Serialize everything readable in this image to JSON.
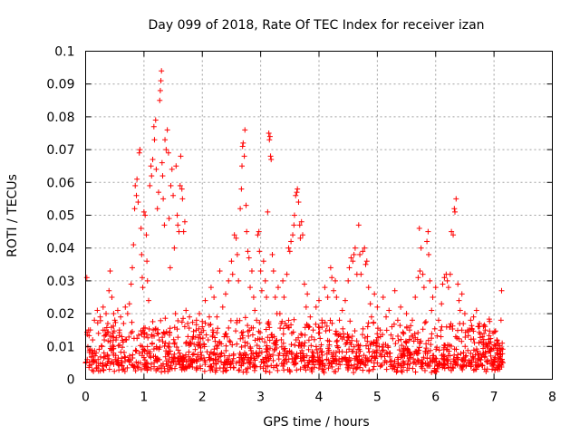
{
  "chart_data": {
    "type": "scatter",
    "title": "Day 099 of 2018, Rate Of TEC Index for receiver izan",
    "xlabel": "GPS time / hours",
    "ylabel": "ROTI / TECUs",
    "xlim": [
      0,
      8
    ],
    "ylim": [
      0,
      0.1
    ],
    "xticks": [
      "0",
      "1",
      "2",
      "3",
      "4",
      "5",
      "6",
      "7",
      "8"
    ],
    "yticks": [
      "0",
      "0.01",
      "0.02",
      "0.03",
      "0.04",
      "0.05",
      "0.06",
      "0.07",
      "0.08",
      "0.09",
      "0.1"
    ],
    "grid": true,
    "marker": "+",
    "color": "#ff0000",
    "series": [
      {
        "name": "ROTI",
        "points": [
          [
            0.0,
            0.005
          ],
          [
            0.02,
            0.031
          ],
          [
            0.05,
            0.015
          ],
          [
            0.08,
            0.009
          ],
          [
            0.1,
            0.007
          ],
          [
            0.12,
            0.012
          ],
          [
            0.15,
            0.018
          ],
          [
            0.18,
            0.008
          ],
          [
            0.2,
            0.021
          ],
          [
            0.22,
            0.014
          ],
          [
            0.25,
            0.019
          ],
          [
            0.28,
            0.01
          ],
          [
            0.3,
            0.022
          ],
          [
            0.32,
            0.012
          ],
          [
            0.35,
            0.02
          ],
          [
            0.38,
            0.017
          ],
          [
            0.4,
            0.027
          ],
          [
            0.42,
            0.033
          ],
          [
            0.45,
            0.025
          ],
          [
            0.48,
            0.02
          ],
          [
            0.5,
            0.018
          ],
          [
            0.52,
            0.012
          ],
          [
            0.55,
            0.021
          ],
          [
            0.58,
            0.015
          ],
          [
            0.6,
            0.019
          ],
          [
            0.62,
            0.013
          ],
          [
            0.65,
            0.017
          ],
          [
            0.68,
            0.022
          ],
          [
            0.7,
            0.012
          ],
          [
            0.72,
            0.02
          ],
          [
            0.75,
            0.023
          ],
          [
            0.78,
            0.029
          ],
          [
            0.8,
            0.034
          ],
          [
            0.82,
            0.041
          ],
          [
            0.84,
            0.052
          ],
          [
            0.85,
            0.059
          ],
          [
            0.87,
            0.056
          ],
          [
            0.88,
            0.061
          ],
          [
            0.9,
            0.054
          ],
          [
            0.92,
            0.069
          ],
          [
            0.93,
            0.07
          ],
          [
            0.95,
            0.046
          ],
          [
            0.96,
            0.038
          ],
          [
            0.97,
            0.031
          ],
          [
            0.98,
            0.028
          ],
          [
            1.0,
            0.051
          ],
          [
            1.02,
            0.05
          ],
          [
            1.04,
            0.044
          ],
          [
            1.05,
            0.036
          ],
          [
            1.06,
            0.03
          ],
          [
            1.08,
            0.024
          ],
          [
            1.1,
            0.059
          ],
          [
            1.12,
            0.065
          ],
          [
            1.13,
            0.062
          ],
          [
            1.15,
            0.067
          ],
          [
            1.17,
            0.077
          ],
          [
            1.18,
            0.073
          ],
          [
            1.2,
            0.079
          ],
          [
            1.21,
            0.064
          ],
          [
            1.23,
            0.052
          ],
          [
            1.25,
            0.057
          ],
          [
            1.27,
            0.085
          ],
          [
            1.28,
            0.088
          ],
          [
            1.29,
            0.091
          ],
          [
            1.3,
            0.094
          ],
          [
            1.31,
            0.066
          ],
          [
            1.32,
            0.062
          ],
          [
            1.33,
            0.055
          ],
          [
            1.35,
            0.047
          ],
          [
            1.36,
            0.073
          ],
          [
            1.38,
            0.07
          ],
          [
            1.4,
            0.076
          ],
          [
            1.42,
            0.069
          ],
          [
            1.43,
            0.049
          ],
          [
            1.45,
            0.034
          ],
          [
            1.46,
            0.059
          ],
          [
            1.48,
            0.064
          ],
          [
            1.5,
            0.056
          ],
          [
            1.52,
            0.04
          ],
          [
            1.54,
            0.02
          ],
          [
            1.55,
            0.065
          ],
          [
            1.57,
            0.05
          ],
          [
            1.58,
            0.047
          ],
          [
            1.6,
            0.045
          ],
          [
            1.62,
            0.059
          ],
          [
            1.63,
            0.068
          ],
          [
            1.65,
            0.058
          ],
          [
            1.66,
            0.055
          ],
          [
            1.68,
            0.045
          ],
          [
            1.7,
            0.048
          ],
          [
            1.72,
            0.021
          ],
          [
            1.75,
            0.017
          ],
          [
            1.78,
            0.019
          ],
          [
            1.8,
            0.011
          ],
          [
            1.85,
            0.013
          ],
          [
            1.9,
            0.018
          ],
          [
            1.95,
            0.02
          ],
          [
            2.0,
            0.016
          ],
          [
            2.05,
            0.024
          ],
          [
            2.1,
            0.012
          ],
          [
            2.12,
            0.019
          ],
          [
            2.15,
            0.028
          ],
          [
            2.18,
            0.015
          ],
          [
            2.2,
            0.025
          ],
          [
            2.25,
            0.019
          ],
          [
            2.3,
            0.033
          ],
          [
            2.35,
            0.022
          ],
          [
            2.4,
            0.026
          ],
          [
            2.45,
            0.03
          ],
          [
            2.5,
            0.036
          ],
          [
            2.52,
            0.032
          ],
          [
            2.55,
            0.044
          ],
          [
            2.58,
            0.043
          ],
          [
            2.6,
            0.038
          ],
          [
            2.62,
            0.03
          ],
          [
            2.65,
            0.052
          ],
          [
            2.67,
            0.058
          ],
          [
            2.68,
            0.065
          ],
          [
            2.69,
            0.071
          ],
          [
            2.7,
            0.072
          ],
          [
            2.72,
            0.068
          ],
          [
            2.73,
            0.076
          ],
          [
            2.75,
            0.053
          ],
          [
            2.76,
            0.045
          ],
          [
            2.78,
            0.039
          ],
          [
            2.8,
            0.037
          ],
          [
            2.82,
            0.028
          ],
          [
            2.85,
            0.033
          ],
          [
            2.88,
            0.025
          ],
          [
            2.9,
            0.021
          ],
          [
            2.93,
            0.018
          ],
          [
            2.95,
            0.044
          ],
          [
            2.97,
            0.045
          ],
          [
            2.98,
            0.039
          ],
          [
            3.0,
            0.033
          ],
          [
            3.02,
            0.027
          ],
          [
            3.05,
            0.036
          ],
          [
            3.08,
            0.03
          ],
          [
            3.1,
            0.025
          ],
          [
            3.12,
            0.051
          ],
          [
            3.14,
            0.075
          ],
          [
            3.15,
            0.073
          ],
          [
            3.16,
            0.074
          ],
          [
            3.17,
            0.068
          ],
          [
            3.18,
            0.067
          ],
          [
            3.2,
            0.038
          ],
          [
            3.22,
            0.033
          ],
          [
            3.25,
            0.025
          ],
          [
            3.28,
            0.02
          ],
          [
            3.3,
            0.028
          ],
          [
            3.33,
            0.02
          ],
          [
            3.35,
            0.017
          ],
          [
            3.38,
            0.03
          ],
          [
            3.4,
            0.025
          ],
          [
            3.42,
            0.017
          ],
          [
            3.45,
            0.032
          ],
          [
            3.48,
            0.04
          ],
          [
            3.5,
            0.039
          ],
          [
            3.52,
            0.042
          ],
          [
            3.55,
            0.044
          ],
          [
            3.57,
            0.047
          ],
          [
            3.58,
            0.05
          ],
          [
            3.6,
            0.056
          ],
          [
            3.62,
            0.057
          ],
          [
            3.63,
            0.058
          ],
          [
            3.65,
            0.054
          ],
          [
            3.67,
            0.047
          ],
          [
            3.68,
            0.043
          ],
          [
            3.7,
            0.048
          ],
          [
            3.72,
            0.044
          ],
          [
            3.75,
            0.029
          ],
          [
            3.78,
            0.022
          ],
          [
            3.8,
            0.026
          ],
          [
            3.85,
            0.019
          ],
          [
            3.9,
            0.015
          ],
          [
            3.95,
            0.022
          ],
          [
            4.0,
            0.024
          ],
          [
            4.05,
            0.018
          ],
          [
            4.1,
            0.028
          ],
          [
            4.15,
            0.025
          ],
          [
            4.2,
            0.034
          ],
          [
            4.22,
            0.031
          ],
          [
            4.25,
            0.027
          ],
          [
            4.28,
            0.03
          ],
          [
            4.3,
            0.025
          ],
          [
            4.35,
            0.018
          ],
          [
            4.4,
            0.021
          ],
          [
            4.45,
            0.024
          ],
          [
            4.5,
            0.03
          ],
          [
            4.52,
            0.034
          ],
          [
            4.55,
            0.037
          ],
          [
            4.58,
            0.036
          ],
          [
            4.6,
            0.038
          ],
          [
            4.62,
            0.04
          ],
          [
            4.65,
            0.032
          ],
          [
            4.68,
            0.047
          ],
          [
            4.7,
            0.038
          ],
          [
            4.72,
            0.032
          ],
          [
            4.75,
            0.039
          ],
          [
            4.78,
            0.04
          ],
          [
            4.8,
            0.035
          ],
          [
            4.82,
            0.036
          ],
          [
            4.85,
            0.028
          ],
          [
            4.88,
            0.023
          ],
          [
            4.9,
            0.019
          ],
          [
            4.95,
            0.026
          ],
          [
            5.0,
            0.022
          ],
          [
            5.05,
            0.015
          ],
          [
            5.1,
            0.025
          ],
          [
            5.15,
            0.019
          ],
          [
            5.2,
            0.021
          ],
          [
            5.25,
            0.016
          ],
          [
            5.3,
            0.027
          ],
          [
            5.35,
            0.018
          ],
          [
            5.4,
            0.022
          ],
          [
            5.45,
            0.014
          ],
          [
            5.5,
            0.02
          ],
          [
            5.55,
            0.012
          ],
          [
            5.6,
            0.018
          ],
          [
            5.65,
            0.025
          ],
          [
            5.7,
            0.031
          ],
          [
            5.72,
            0.046
          ],
          [
            5.73,
            0.033
          ],
          [
            5.75,
            0.04
          ],
          [
            5.78,
            0.032
          ],
          [
            5.8,
            0.028
          ],
          [
            5.85,
            0.042
          ],
          [
            5.87,
            0.045
          ],
          [
            5.88,
            0.038
          ],
          [
            5.9,
            0.03
          ],
          [
            5.93,
            0.021
          ],
          [
            5.95,
            0.025
          ],
          [
            6.0,
            0.028
          ],
          [
            6.05,
            0.018
          ],
          [
            6.1,
            0.023
          ],
          [
            6.12,
            0.029
          ],
          [
            6.15,
            0.031
          ],
          [
            6.18,
            0.032
          ],
          [
            6.2,
            0.03
          ],
          [
            6.22,
            0.028
          ],
          [
            6.25,
            0.032
          ],
          [
            6.27,
            0.045
          ],
          [
            6.3,
            0.044
          ],
          [
            6.32,
            0.052
          ],
          [
            6.33,
            0.051
          ],
          [
            6.35,
            0.055
          ],
          [
            6.38,
            0.029
          ],
          [
            6.4,
            0.024
          ],
          [
            6.42,
            0.021
          ],
          [
            6.45,
            0.026
          ],
          [
            6.5,
            0.02
          ],
          [
            6.55,
            0.015
          ],
          [
            6.6,
            0.018
          ],
          [
            6.65,
            0.019
          ],
          [
            6.7,
            0.021
          ],
          [
            6.75,
            0.017
          ],
          [
            6.8,
            0.013
          ],
          [
            6.85,
            0.015
          ],
          [
            6.9,
            0.011
          ],
          [
            6.95,
            0.009
          ],
          [
            7.0,
            0.006
          ],
          [
            7.1,
            0.009
          ],
          [
            7.12,
            0.018
          ],
          [
            7.13,
            0.027
          ],
          [
            7.14,
            0.011
          ],
          [
            7.15,
            0.005
          ]
        ]
      }
    ],
    "background_band": {
      "description": "dense cluster of low ROTI samples",
      "x_range": [
        0,
        7.15
      ],
      "y_range": [
        0.002,
        0.015
      ]
    }
  }
}
